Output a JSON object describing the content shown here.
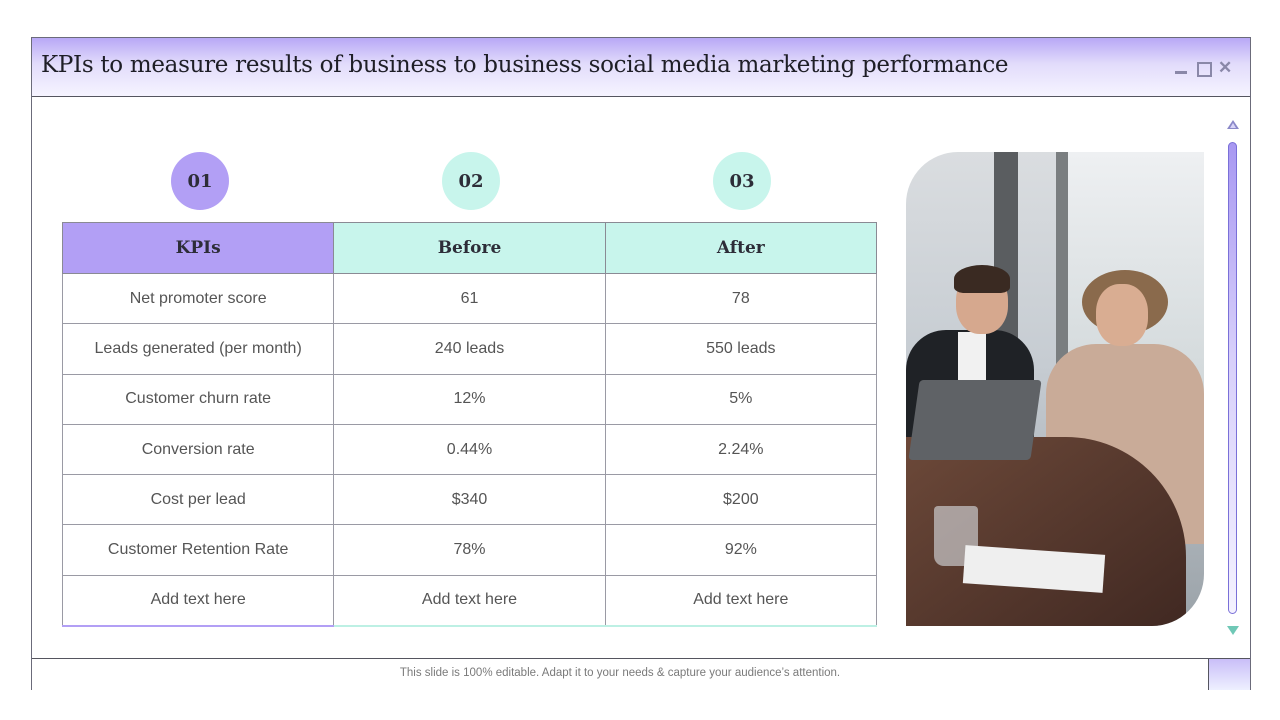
{
  "window": {
    "title": "KPIs to measure results of business to business social media marketing performance",
    "controls": [
      "minimize",
      "maximize",
      "close"
    ]
  },
  "steps": [
    "01",
    "02",
    "03"
  ],
  "table": {
    "headers": [
      "KPIs",
      "Before",
      "After"
    ],
    "rows": [
      [
        "Net promoter score",
        "61",
        "78"
      ],
      [
        "Leads generated (per month)",
        "240 leads",
        "550 leads"
      ],
      [
        "Customer churn rate",
        "12%",
        "5%"
      ],
      [
        "Conversion rate",
        "0.44%",
        "2.24%"
      ],
      [
        "Cost per lead",
        "$340",
        "$200"
      ],
      [
        "Customer Retention Rate",
        "78%",
        "92%"
      ],
      [
        "Add text here",
        "Add text here",
        "Add text here"
      ]
    ]
  },
  "photo": {
    "subject": "business-meeting-photo"
  },
  "footer": {
    "text": "This slide is 100% editable. Adapt it to your needs & capture your audience’s attention."
  },
  "colors": {
    "accent_purple": "#b29ff5",
    "accent_mint": "#c8f5ec",
    "title_gradient_top": "#b8a8f6"
  }
}
